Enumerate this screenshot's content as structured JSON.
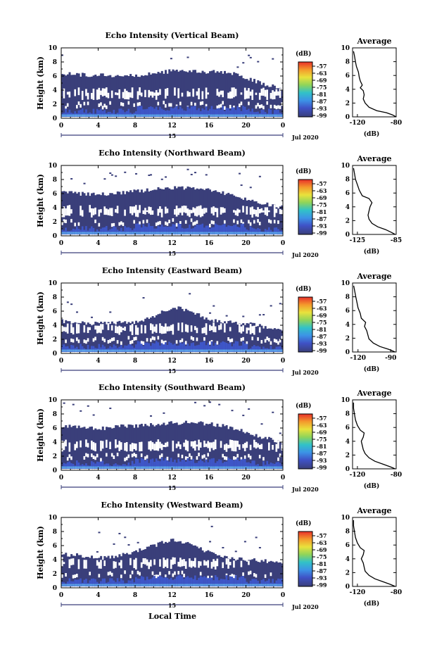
{
  "figure": {
    "xlabel": "Local Time",
    "colors": {
      "background": "#ffffff",
      "echo_base": "#3a3f7a",
      "echo_mid": "#3e56c8",
      "echo_high": "#5aa0e6",
      "line": "#000000"
    }
  },
  "chart_data": [
    {
      "type": "heatmap",
      "title": "Echo Intensity (Vertical Beam)",
      "xlabel": "",
      "ylabel": "Height (km)",
      "x_ticks": [
        "0",
        "4",
        "8",
        "12",
        "16",
        "20",
        "0"
      ],
      "xlim": [
        0,
        24
      ],
      "y_ticks": [
        "0",
        "2",
        "4",
        "6",
        "8",
        "10"
      ],
      "ylim": [
        0,
        10
      ],
      "date_label": "Jul 2020",
      "day_label": "15",
      "colorbar": {
        "unit": "(dB)",
        "ticks": [
          "-57",
          "-63",
          "-69",
          "-75",
          "-81",
          "-87",
          "-93",
          "-99"
        ]
      },
      "echo_top_km": [
        [
          0,
          6.3
        ],
        [
          2,
          6.2
        ],
        [
          4,
          6.1
        ],
        [
          6,
          6.0
        ],
        [
          8,
          6.1
        ],
        [
          10,
          6.4
        ],
        [
          12,
          6.7
        ],
        [
          14,
          6.8
        ],
        [
          16,
          6.6
        ],
        [
          18,
          6.5
        ],
        [
          20,
          5.8
        ],
        [
          22,
          4.8
        ],
        [
          24,
          4.2
        ]
      ],
      "average": {
        "title": "Average",
        "xlabel": "(dB)",
        "x_ticks": [
          "-120",
          "-80"
        ],
        "xlim": [
          -125,
          -80
        ],
        "y_ticks": [
          "0",
          "2",
          "4",
          "6",
          "8",
          "10"
        ],
        "ylim": [
          0,
          10
        ],
        "profile": [
          [
            -80,
            0.0
          ],
          [
            -84,
            0.3
          ],
          [
            -90,
            0.6
          ],
          [
            -100,
            0.9
          ],
          [
            -108,
            1.4
          ],
          [
            -112,
            2.0
          ],
          [
            -114,
            2.6
          ],
          [
            -113,
            3.2
          ],
          [
            -114,
            3.8
          ],
          [
            -117,
            4.2
          ],
          [
            -115,
            4.6
          ],
          [
            -117,
            5.2
          ],
          [
            -118,
            5.7
          ],
          [
            -119,
            6.5
          ],
          [
            -121,
            7.3
          ],
          [
            -122,
            8.0
          ],
          [
            -123,
            8.8
          ],
          [
            -124,
            9.5
          ]
        ]
      }
    },
    {
      "type": "heatmap",
      "title": "Echo Intensity (Northward Beam)",
      "xlabel": "",
      "ylabel": "Height (km)",
      "x_ticks": [
        "0",
        "4",
        "8",
        "12",
        "16",
        "20",
        "0"
      ],
      "xlim": [
        0,
        24
      ],
      "y_ticks": [
        "0",
        "2",
        "4",
        "6",
        "8",
        "10"
      ],
      "ylim": [
        0,
        10
      ],
      "date_label": "Jul 2020",
      "day_label": "15",
      "colorbar": {
        "unit": "(dB)",
        "ticks": [
          "-57",
          "-63",
          "-69",
          "-75",
          "-81",
          "-87",
          "-93",
          "-99"
        ]
      },
      "echo_top_km": [
        [
          0,
          6.2
        ],
        [
          2,
          6.0
        ],
        [
          4,
          5.8
        ],
        [
          6,
          6.1
        ],
        [
          8,
          6.3
        ],
        [
          10,
          6.6
        ],
        [
          12,
          6.8
        ],
        [
          14,
          6.7
        ],
        [
          16,
          6.5
        ],
        [
          18,
          6.0
        ],
        [
          20,
          5.2
        ],
        [
          22,
          4.5
        ],
        [
          24,
          4.0
        ]
      ],
      "average": {
        "title": "Average",
        "xlabel": "(dB)",
        "x_ticks": [
          "-125",
          "-85"
        ],
        "xlim": [
          -130,
          -85
        ],
        "y_ticks": [
          "0",
          "2",
          "4",
          "6",
          "8",
          "10"
        ],
        "ylim": [
          0,
          10
        ],
        "profile": [
          [
            -86,
            0.0
          ],
          [
            -90,
            0.3
          ],
          [
            -96,
            0.7
          ],
          [
            -104,
            1.1
          ],
          [
            -110,
            1.6
          ],
          [
            -113,
            2.2
          ],
          [
            -114,
            2.8
          ],
          [
            -113,
            3.4
          ],
          [
            -112,
            4.0
          ],
          [
            -110,
            4.6
          ],
          [
            -113,
            5.2
          ],
          [
            -120,
            5.6
          ],
          [
            -123,
            6.4
          ],
          [
            -125,
            7.2
          ],
          [
            -127,
            8.0
          ],
          [
            -128,
            8.8
          ],
          [
            -129,
            9.6
          ]
        ]
      }
    },
    {
      "type": "heatmap",
      "title": "Echo Intensity (Eastward Beam)",
      "xlabel": "",
      "ylabel": "Height (km)",
      "x_ticks": [
        "0",
        "4",
        "8",
        "12",
        "16",
        "20",
        "0"
      ],
      "xlim": [
        0,
        24
      ],
      "y_ticks": [
        "0",
        "2",
        "4",
        "6",
        "8",
        "10"
      ],
      "ylim": [
        0,
        10
      ],
      "date_label": "Jul 2020",
      "day_label": "15",
      "colorbar": {
        "unit": "(dB)",
        "ticks": [
          "-57",
          "-63",
          "-69",
          "-75",
          "-81",
          "-87",
          "-93",
          "-99"
        ]
      },
      "echo_top_km": [
        [
          0,
          4.6
        ],
        [
          2,
          4.4
        ],
        [
          4,
          4.2
        ],
        [
          6,
          4.3
        ],
        [
          8,
          4.5
        ],
        [
          10,
          5.2
        ],
        [
          12,
          6.6
        ],
        [
          14,
          6.0
        ],
        [
          16,
          4.8
        ],
        [
          18,
          4.4
        ],
        [
          20,
          4.2
        ],
        [
          22,
          3.8
        ],
        [
          24,
          3.5
        ]
      ],
      "average": {
        "title": "Average",
        "xlabel": "(dB)",
        "x_ticks": [
          "-120",
          "-90"
        ],
        "xlim": [
          -125,
          -85
        ],
        "y_ticks": [
          "0",
          "2",
          "4",
          "6",
          "8",
          "10"
        ],
        "ylim": [
          0,
          10
        ],
        "profile": [
          [
            -86,
            0.0
          ],
          [
            -92,
            0.4
          ],
          [
            -100,
            0.8
          ],
          [
            -106,
            1.3
          ],
          [
            -110,
            1.9
          ],
          [
            -111,
            2.5
          ],
          [
            -112,
            3.1
          ],
          [
            -114,
            3.7
          ],
          [
            -113,
            4.3
          ],
          [
            -117,
            4.9
          ],
          [
            -118,
            5.6
          ],
          [
            -120,
            6.4
          ],
          [
            -121,
            7.2
          ],
          [
            -122,
            8.0
          ],
          [
            -123,
            8.8
          ],
          [
            -124,
            9.6
          ]
        ]
      }
    },
    {
      "type": "heatmap",
      "title": "Echo Intensity (Southward Beam)",
      "xlabel": "",
      "ylabel": "Height (km)",
      "x_ticks": [
        "0",
        "4",
        "8",
        "12",
        "16",
        "20",
        "0"
      ],
      "xlim": [
        0,
        24
      ],
      "y_ticks": [
        "0",
        "2",
        "4",
        "6",
        "8",
        "10"
      ],
      "ylim": [
        0,
        10
      ],
      "date_label": "Jul 2020",
      "day_label": "15",
      "colorbar": {
        "unit": "(dB)",
        "ticks": [
          "-57",
          "-63",
          "-69",
          "-75",
          "-81",
          "-87",
          "-93",
          "-99"
        ]
      },
      "echo_top_km": [
        [
          0,
          6.3
        ],
        [
          2,
          6.1
        ],
        [
          4,
          5.9
        ],
        [
          6,
          6.2
        ],
        [
          8,
          6.3
        ],
        [
          10,
          6.5
        ],
        [
          12,
          6.7
        ],
        [
          14,
          6.8
        ],
        [
          16,
          6.6
        ],
        [
          18,
          6.2
        ],
        [
          20,
          5.4
        ],
        [
          22,
          4.6
        ],
        [
          24,
          4.0
        ]
      ],
      "average": {
        "title": "Average",
        "xlabel": "(dB)",
        "x_ticks": [
          "-120",
          "-80"
        ],
        "xlim": [
          -125,
          -80
        ],
        "y_ticks": [
          "0",
          "2",
          "4",
          "6",
          "8",
          "10"
        ],
        "ylim": [
          0,
          10
        ],
        "profile": [
          [
            -81,
            0.0
          ],
          [
            -86,
            0.3
          ],
          [
            -94,
            0.7
          ],
          [
            -102,
            1.1
          ],
          [
            -108,
            1.6
          ],
          [
            -112,
            2.2
          ],
          [
            -114,
            2.8
          ],
          [
            -115,
            3.4
          ],
          [
            -116,
            4.0
          ],
          [
            -114,
            4.6
          ],
          [
            -113,
            5.2
          ],
          [
            -117,
            5.6
          ],
          [
            -120,
            6.3
          ],
          [
            -122,
            7.1
          ],
          [
            -123,
            7.9
          ],
          [
            -124,
            8.8
          ],
          [
            -124,
            9.6
          ]
        ]
      }
    },
    {
      "type": "heatmap",
      "title": "Echo Intensity (Westward Beam)",
      "xlabel": "Local Time",
      "ylabel": "Height (km)",
      "x_ticks": [
        "0",
        "4",
        "8",
        "12",
        "16",
        "20",
        "0"
      ],
      "xlim": [
        0,
        24
      ],
      "y_ticks": [
        "0",
        "2",
        "4",
        "6",
        "8",
        "10"
      ],
      "ylim": [
        0,
        10
      ],
      "date_label": "Jul 2020",
      "day_label": "15",
      "colorbar": {
        "unit": "(dB)",
        "ticks": [
          "-57",
          "-63",
          "-69",
          "-75",
          "-81",
          "-87",
          "-93",
          "-99"
        ]
      },
      "echo_top_km": [
        [
          0,
          4.8
        ],
        [
          2,
          4.6
        ],
        [
          4,
          4.2
        ],
        [
          6,
          4.5
        ],
        [
          8,
          5.2
        ],
        [
          10,
          6.0
        ],
        [
          12,
          6.8
        ],
        [
          14,
          6.4
        ],
        [
          16,
          5.0
        ],
        [
          18,
          4.2
        ],
        [
          20,
          4.0
        ],
        [
          22,
          3.8
        ],
        [
          24,
          3.6
        ]
      ],
      "average": {
        "title": "Average",
        "xlabel": "(dB)",
        "x_ticks": [
          "-120",
          "-80"
        ],
        "xlim": [
          -125,
          -80
        ],
        "y_ticks": [
          "0",
          "2",
          "4",
          "6",
          "8",
          "10"
        ],
        "ylim": [
          0,
          10
        ],
        "profile": [
          [
            -81,
            0.0
          ],
          [
            -86,
            0.3
          ],
          [
            -94,
            0.7
          ],
          [
            -102,
            1.1
          ],
          [
            -108,
            1.6
          ],
          [
            -112,
            2.2
          ],
          [
            -113,
            2.8
          ],
          [
            -114,
            3.4
          ],
          [
            -116,
            4.0
          ],
          [
            -114,
            4.6
          ],
          [
            -113,
            5.2
          ],
          [
            -117,
            5.6
          ],
          [
            -120,
            6.3
          ],
          [
            -122,
            7.1
          ],
          [
            -123,
            7.9
          ],
          [
            -124,
            8.8
          ],
          [
            -124,
            9.6
          ]
        ]
      }
    }
  ]
}
